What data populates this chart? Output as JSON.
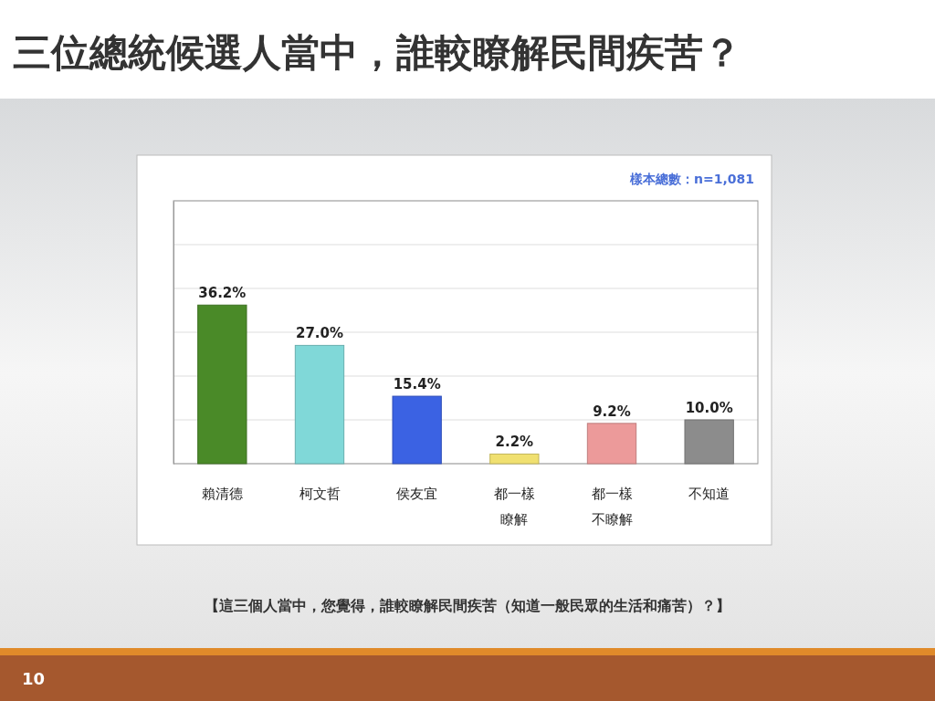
{
  "chart_data": {
    "type": "bar",
    "title": "三位總統候選人當中，誰較瞭解民間疾苦？",
    "categories": [
      "賴清德",
      "柯文哲",
      "侯友宜",
      "都一樣瞭解",
      "都一樣不瞭解",
      "不知道"
    ],
    "values": [
      36.2,
      27.0,
      15.4,
      2.2,
      9.2,
      10.0
    ],
    "value_labels": [
      "36.2%",
      "27.0%",
      "15.4%",
      "2.2%",
      "9.2%",
      "10.0%"
    ],
    "colors": [
      "#4a8a28",
      "#80d8d8",
      "#3b62e3",
      "#f0e070",
      "#ec9a9a",
      "#8c8c8c"
    ],
    "ylim": [
      0,
      60
    ],
    "yticks": [
      {
        "value": 0,
        "label": null
      },
      {
        "value": 10,
        "label": null
      },
      {
        "value": 20,
        "label": null
      },
      {
        "value": 30,
        "label": null
      },
      {
        "value": 40,
        "label": null
      },
      {
        "value": 50,
        "label": null
      },
      {
        "value": 60,
        "label": null
      }
    ],
    "tick_labels": "x",
    "grid": "y",
    "annotations": [
      "樣本總數：n=1,081",
      "【這三個人當中，您覺得，誰較瞭解民間疾苦（知道一般民眾的生活和痛苦）？】",
      "10"
    ]
  }
}
